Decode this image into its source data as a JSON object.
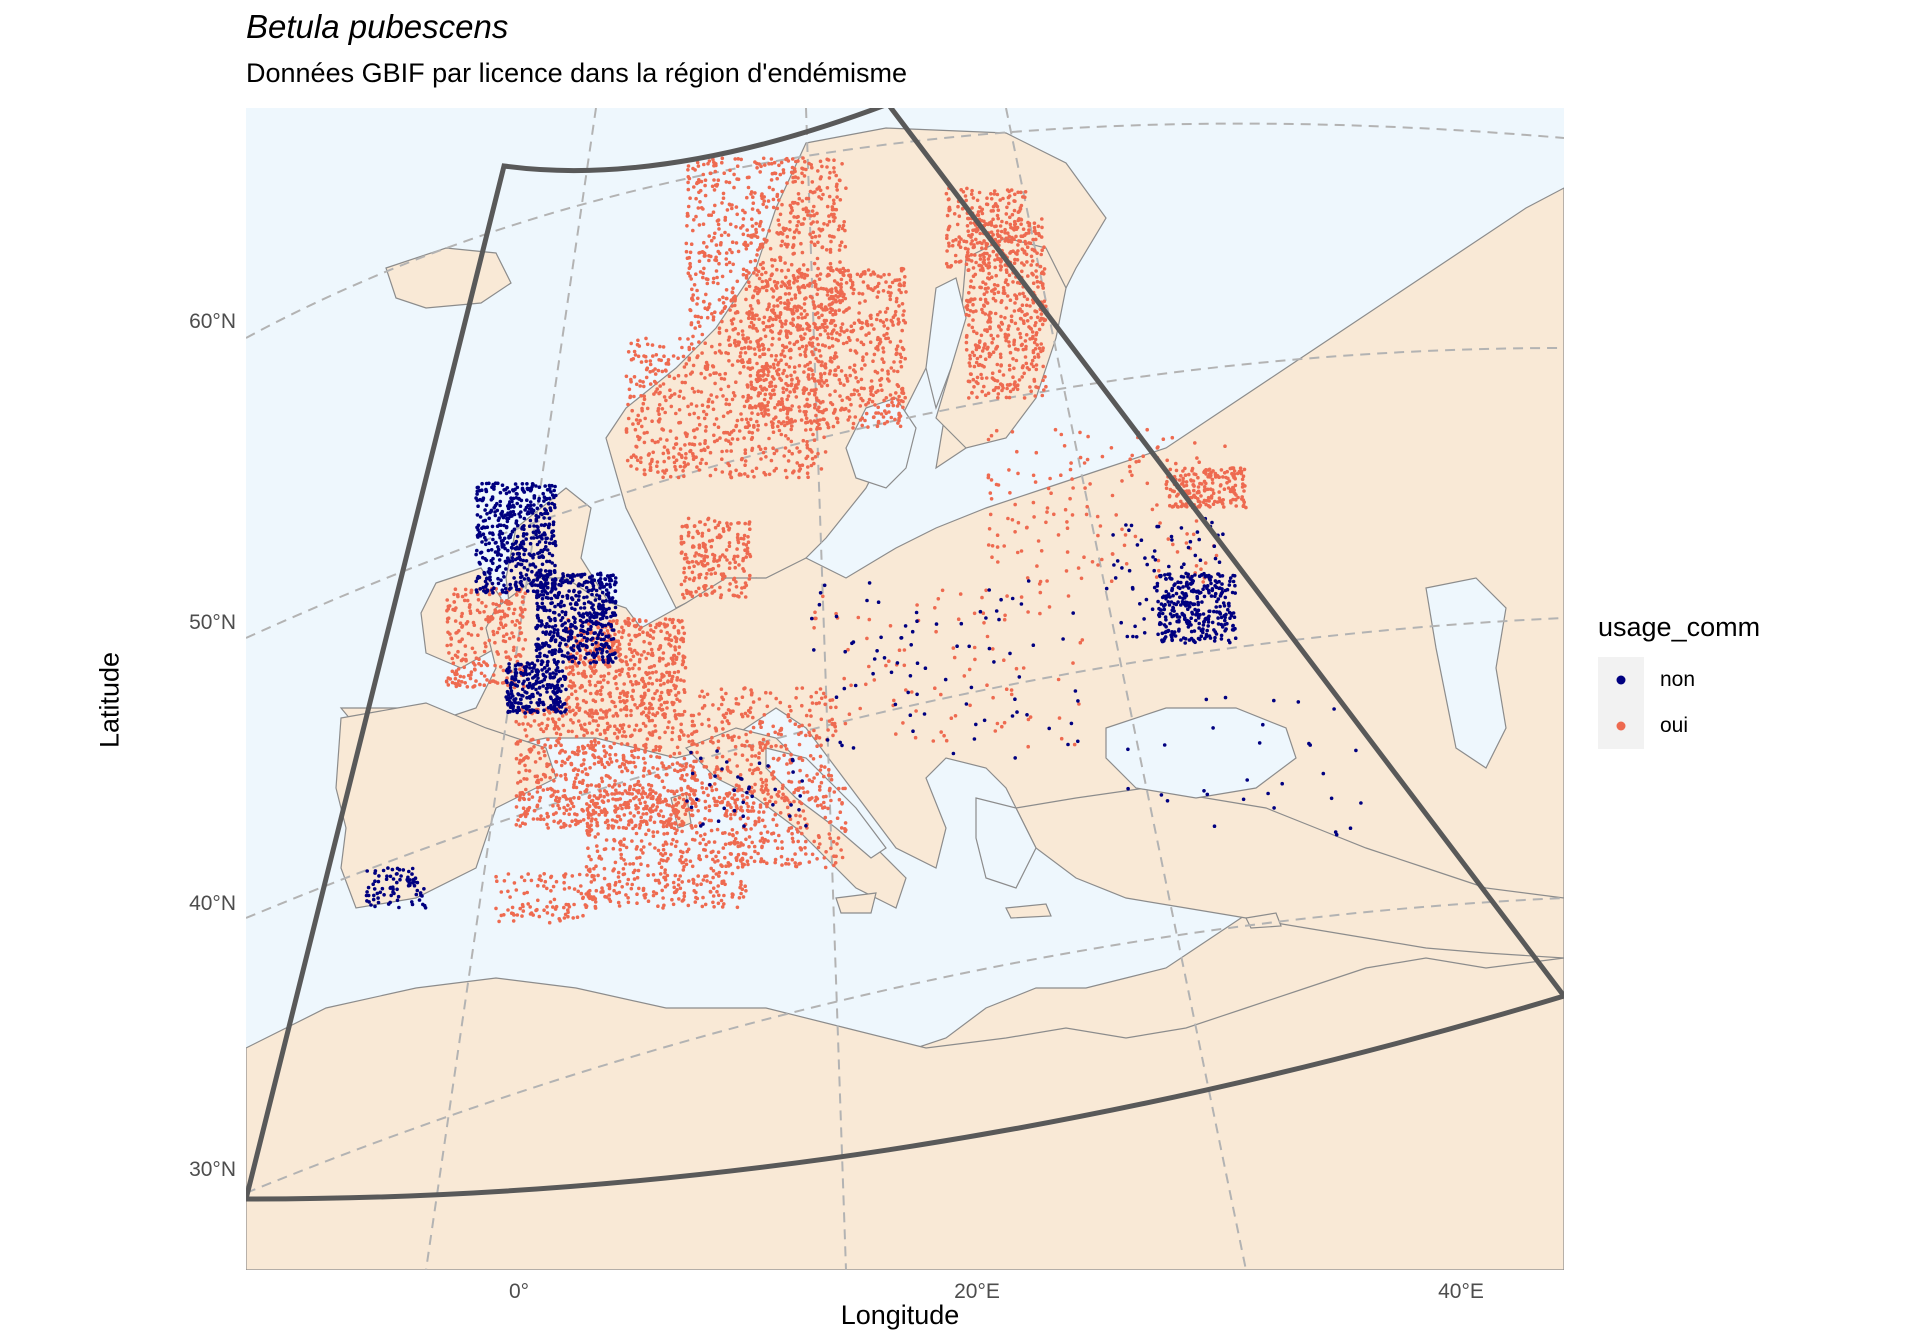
{
  "title": "Betula pubescens",
  "subtitle": "Données GBIF par licence dans la région d'endémisme",
  "axes": {
    "xlabel": "Longitude",
    "ylabel": "Latitude",
    "x_ticks": [
      "0°",
      "20°E",
      "40°E"
    ],
    "y_ticks": [
      "60°N",
      "50°N",
      "40°N",
      "30°N"
    ]
  },
  "legend": {
    "title": "usage_comm",
    "position": "right",
    "entries": [
      {
        "label": "non",
        "color": "#000080"
      },
      {
        "label": "oui",
        "color": "#EE6A50"
      }
    ]
  },
  "colors": {
    "land": "#F9E9D6",
    "sea": "#EEF7FD",
    "graticule": "#B3B3B3",
    "region_outline": "#595959",
    "borders": "#8C8C8C",
    "non": "#000080",
    "oui": "#EE6A50"
  }
}
